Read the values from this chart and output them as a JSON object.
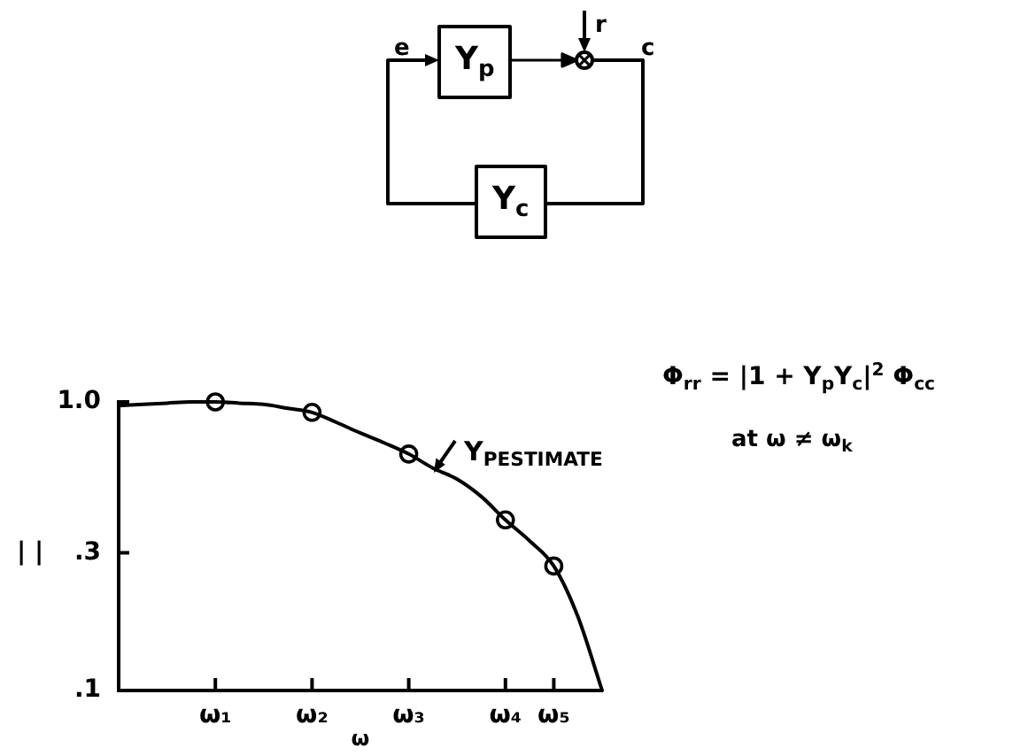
{
  "chart_data": {
    "type": "line",
    "annotations": [
      "Y$_{PESTIMATE}$",
      "Φ$_{rr}$ = |1 + Y$_{p}$Y$_{c}$|$^{2}$ Φ$_{cc}$",
      "at ω ≠ ω$_{k}$",
      "e",
      "Y$_{p}$",
      "r",
      "c",
      "Y$_{c}$"
    ],
    "xlabel": "ω",
    "ylabel": "| |",
    "categories": [
      null,
      null,
      null,
      null,
      "ω₁",
      null,
      null,
      null,
      "ω₂",
      null,
      null,
      null,
      "ω₃",
      null,
      null,
      null,
      "ω₄",
      null,
      "ω₅",
      null,
      null
    ],
    "series": [
      {
        "color": "#000000",
        "marker": "none",
        "values": [
          0.97,
          0.98,
          0.99,
          1,
          1,
          0.99,
          0.98,
          0.95,
          0.92,
          0.85,
          0.78,
          0.72,
          0.66,
          0.59,
          0.54,
          0.47,
          0.39,
          0.33,
          0.27,
          0.18,
          0.1
        ]
      },
      {
        "type": "scatter",
        "color": "#000000",
        "marker": "circle",
        "x": [
          "ω₁",
          "ω₂",
          "ω₃",
          "ω₄",
          "ω₅"
        ],
        "values": [
          1,
          0.92,
          0.66,
          0.39,
          0.27
        ]
      }
    ],
    "ylim": [
      0.1,
      1
    ],
    "yticks": [
      {
        "value": 1,
        "label": "1.0"
      },
      {
        "value": 0.3,
        "label": ".3"
      },
      {
        "value": 0.1,
        "label": ".1"
      }
    ],
    "log": true
  }
}
